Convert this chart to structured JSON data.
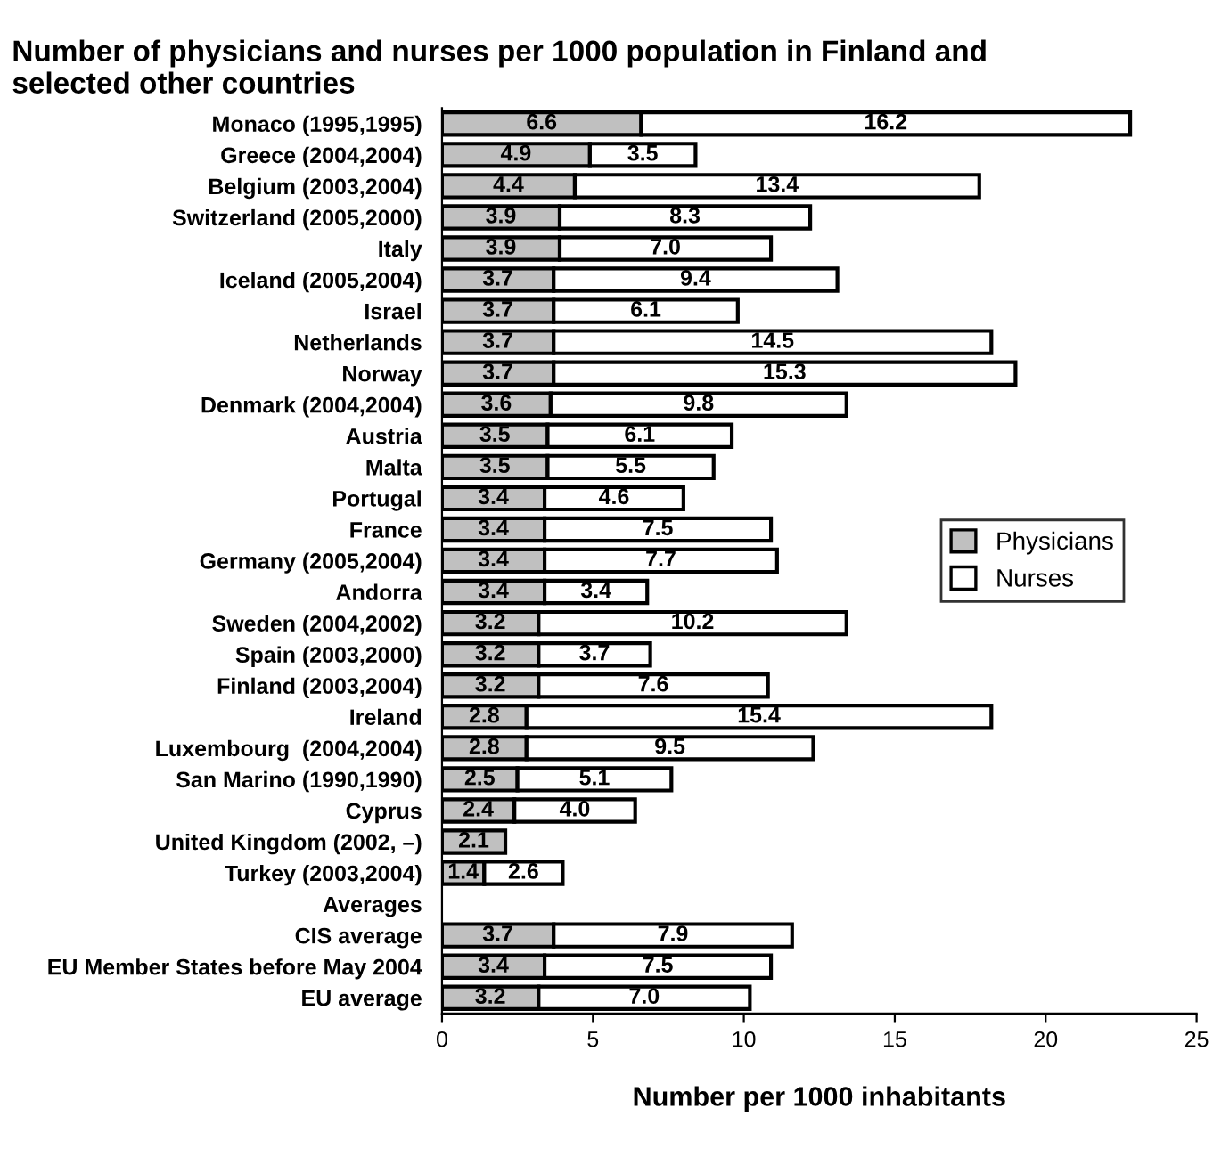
{
  "chart_data": {
    "type": "bar",
    "orientation": "horizontal",
    "stacked": true,
    "title": "Number of physicians and nurses per 1000 population in Finland and\nselected other countries",
    "xlabel": "Number per 1000 inhabitants",
    "categories": [
      "Monaco (1995,1995)",
      "Greece (2004,2004)",
      "Belgium (2003,2004)",
      "Switzerland (2005,2000)",
      "Italy",
      "Iceland (2005,2004)",
      "Israel",
      "Netherlands",
      "Norway",
      "Denmark (2004,2004)",
      "Austria",
      "Malta",
      "Portugal",
      "France",
      "Germany (2005,2004)",
      "Andorra",
      "Sweden (2004,2002)",
      "Spain (2003,2000)",
      "Finland (2003,2004)",
      "Ireland",
      "Luxembourg  (2004,2004)",
      "San Marino (1990,1990)",
      "Cyprus",
      "United Kingdom (2002, –)",
      "Turkey (2003,2004)",
      "Averages",
      "CIS average",
      "EU Member States before May 2004",
      "EU average"
    ],
    "series": [
      {
        "name": "Physicians",
        "color": "#c0c0c0",
        "values": [
          6.6,
          4.9,
          4.4,
          3.9,
          3.9,
          3.7,
          3.7,
          3.7,
          3.7,
          3.6,
          3.5,
          3.5,
          3.4,
          3.4,
          3.4,
          3.4,
          3.2,
          3.2,
          3.2,
          2.8,
          2.8,
          2.5,
          2.4,
          2.1,
          1.4,
          null,
          3.7,
          3.4,
          3.2
        ],
        "value_labels": [
          "6.6",
          "4.9",
          "4.4",
          "3.9",
          "3.9",
          "3.7",
          "3.7",
          "3.7",
          "3.7",
          "3.6",
          "3.5",
          "3.5",
          "3.4",
          "3.4",
          "3.4",
          "3.4",
          "3.2",
          "3.2",
          "3.2",
          "2.8",
          "2.8",
          "2.5",
          "2.4",
          "2.1",
          "1.4",
          null,
          "3.7",
          "3.4",
          "3.2"
        ]
      },
      {
        "name": "Nurses",
        "color": "#ffffff",
        "values": [
          16.2,
          3.5,
          13.4,
          8.3,
          7.0,
          9.4,
          6.1,
          14.5,
          15.3,
          9.8,
          6.1,
          5.5,
          4.6,
          7.5,
          7.7,
          3.4,
          10.2,
          3.7,
          7.6,
          15.4,
          9.5,
          5.1,
          4.0,
          null,
          2.6,
          null,
          7.9,
          7.5,
          7.0
        ],
        "value_labels": [
          "16.2",
          "3.5",
          "13.4",
          "8.3",
          "7.0",
          "9.4",
          "6.1",
          "14.5",
          "15.3",
          "9.8",
          "6.1",
          "5.5",
          "4.6",
          "7.5",
          "7.7",
          "3.4",
          "10.2",
          "3.7",
          "7.6",
          "15.4",
          "9.5",
          "5.1",
          "4.0",
          null,
          "2.6",
          null,
          "7.9",
          "7.5",
          "7.0"
        ]
      }
    ],
    "xlim": [
      0,
      25
    ],
    "xticks": [
      0,
      5,
      10,
      15,
      20,
      25
    ],
    "legend": "right",
    "grid": false
  }
}
